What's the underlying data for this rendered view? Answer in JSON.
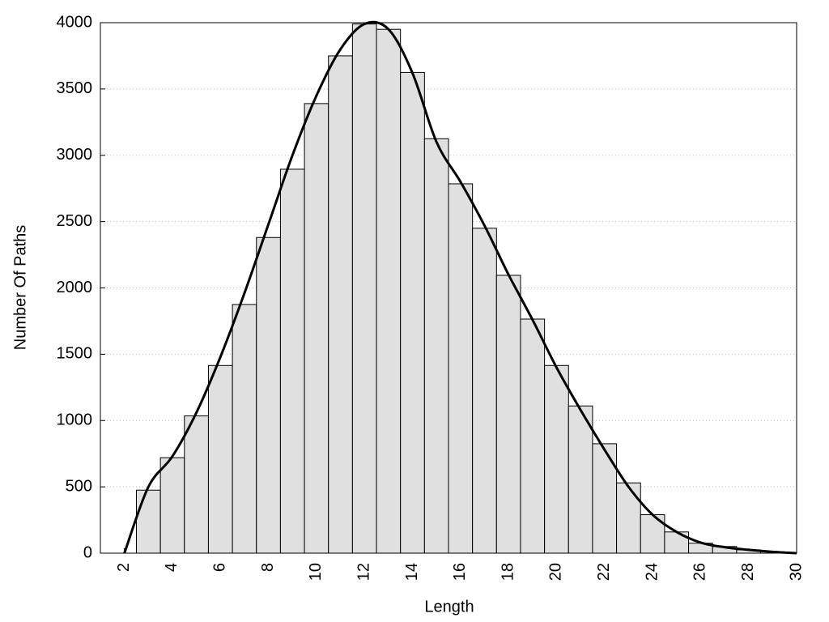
{
  "chart_data": {
    "type": "histogram",
    "xlabel": "Length",
    "ylabel": "Number Of Paths",
    "bins": [
      2.5,
      3.5,
      4.5,
      5.5,
      6.5,
      7.5,
      8.5,
      9.5,
      10.5,
      11.5,
      12.5,
      13.5,
      14.5,
      15.5,
      16.5,
      17.5,
      18.5,
      19.5,
      20.5,
      21.5,
      22.5,
      23.5,
      24.5,
      25.5,
      26.5,
      27.5,
      28.5,
      29.5
    ],
    "values": [
      475,
      720,
      1035,
      1415,
      1875,
      2380,
      2895,
      3390,
      3750,
      3990,
      3950,
      3625,
      3125,
      2785,
      2450,
      2095,
      1765,
      1415,
      1110,
      825,
      530,
      290,
      160,
      75,
      50,
      25,
      10
    ],
    "color": "#e0e0e0",
    "line": {
      "x": [
        2,
        3,
        4,
        5,
        6,
        7,
        8,
        9,
        10,
        11,
        12,
        13,
        14,
        15,
        16,
        17,
        18,
        19,
        20,
        21,
        22,
        23,
        24,
        25,
        26,
        27,
        28,
        29,
        30
      ],
      "values": [
        0,
        500,
        730,
        1060,
        1480,
        1960,
        2480,
        3000,
        3450,
        3800,
        3990,
        3950,
        3620,
        3100,
        2800,
        2470,
        2100,
        1760,
        1400,
        1080,
        780,
        500,
        290,
        160,
        80,
        45,
        25,
        10,
        0
      ],
      "color": "#000000"
    },
    "xlim": [
      1,
      30
    ],
    "ylim": [
      0,
      4000
    ],
    "xticks": [
      2,
      4,
      6,
      8,
      10,
      12,
      14,
      16,
      18,
      20,
      22,
      24,
      26,
      28,
      30
    ],
    "yticks": [
      0,
      500,
      1000,
      1500,
      2000,
      2500,
      3000,
      3500,
      4000
    ],
    "grid": true
  }
}
